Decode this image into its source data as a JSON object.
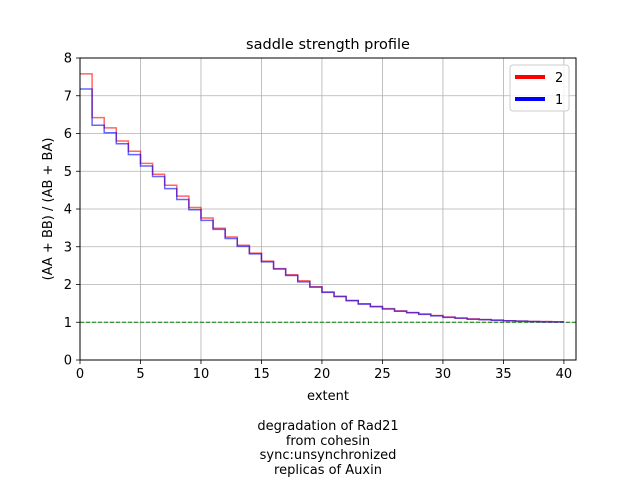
{
  "chart_data": {
    "type": "line",
    "drawstyle": "steps-post",
    "title": "saddle strength profile",
    "xlabel": "extent",
    "ylabel": "(AA + BB) / (AB + BA)",
    "xlim": [
      0,
      41
    ],
    "ylim": [
      0,
      8
    ],
    "xticks": [
      0,
      5,
      10,
      15,
      20,
      25,
      30,
      35,
      40
    ],
    "yticks": [
      0,
      1,
      2,
      3,
      4,
      5,
      6,
      7,
      8
    ],
    "grid": true,
    "legend_position": "top-right",
    "reference_line": {
      "y": 1,
      "style": "dashed",
      "color": "#008000"
    },
    "series": [
      {
        "name": "2",
        "color": "#ff0000",
        "x": [
          0,
          1,
          2,
          3,
          4,
          5,
          6,
          7,
          8,
          9,
          10,
          11,
          12,
          13,
          14,
          15,
          16,
          17,
          18,
          19,
          20,
          21,
          22,
          23,
          24,
          25,
          26,
          27,
          28,
          29,
          30,
          31,
          32,
          33,
          34,
          35,
          36,
          37,
          38,
          39
        ],
        "values": [
          7.58,
          6.42,
          6.15,
          5.8,
          5.53,
          5.21,
          4.92,
          4.63,
          4.34,
          4.04,
          3.76,
          3.49,
          3.26,
          3.04,
          2.83,
          2.62,
          2.42,
          2.26,
          2.1,
          1.94,
          1.8,
          1.69,
          1.58,
          1.49,
          1.42,
          1.36,
          1.3,
          1.26,
          1.22,
          1.18,
          1.14,
          1.11,
          1.09,
          1.07,
          1.06,
          1.04,
          1.03,
          1.02,
          1.02,
          1.01
        ]
      },
      {
        "name": "1",
        "color": "#0000ff",
        "x": [
          0,
          1,
          2,
          3,
          4,
          5,
          6,
          7,
          8,
          9,
          10,
          11,
          12,
          13,
          14,
          15,
          16,
          17,
          18,
          19,
          20,
          21,
          22,
          23,
          24,
          25,
          26,
          27,
          28,
          29,
          30,
          31,
          32,
          33,
          34,
          35,
          36,
          37,
          38,
          39
        ],
        "values": [
          7.18,
          6.22,
          6.02,
          5.73,
          5.44,
          5.14,
          4.86,
          4.54,
          4.25,
          3.98,
          3.7,
          3.46,
          3.22,
          3.01,
          2.81,
          2.6,
          2.41,
          2.24,
          2.07,
          1.93,
          1.79,
          1.68,
          1.57,
          1.48,
          1.41,
          1.35,
          1.29,
          1.25,
          1.21,
          1.17,
          1.13,
          1.11,
          1.08,
          1.07,
          1.05,
          1.04,
          1.03,
          1.02,
          1.01,
          1.01
        ]
      }
    ]
  },
  "caption": {
    "lines": [
      "degradation of Rad21",
      "from cohesin",
      "sync:unsynchronized",
      "replicas of Auxin"
    ]
  }
}
